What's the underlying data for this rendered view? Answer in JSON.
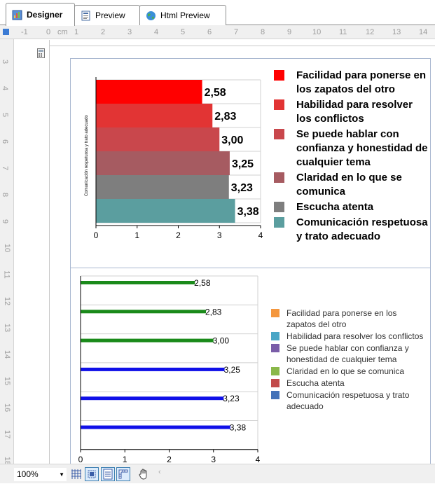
{
  "tabs": [
    {
      "label": "Designer",
      "icon": "designer-icon"
    },
    {
      "label": "Preview",
      "icon": "preview-icon"
    },
    {
      "label": "Html Preview",
      "icon": "globe-icon"
    }
  ],
  "ruler": {
    "unit": "cm",
    "top_labels": [
      "-1",
      "0",
      "cm",
      "1",
      "2",
      "3",
      "4",
      "5",
      "6",
      "7",
      "8",
      "9",
      "10",
      "11",
      "12",
      "13",
      "14"
    ],
    "left_labels": [
      "3",
      "4",
      "5",
      "6",
      "7",
      "8",
      "9",
      "10",
      "11",
      "12",
      "13",
      "14",
      "15",
      "16",
      "17",
      "18"
    ]
  },
  "chart_data": [
    {
      "type": "bar",
      "orientation": "horizontal",
      "categories": [
        "Facilidad para ponerse en los zapatos del otro",
        "Habilidad para resolver los conflictos",
        "Se puede hablar con confianza y honestidad de cualquier tema",
        "Claridad en lo que se comunica",
        "Escucha atenta",
        "Comunicación respetuosa y trato adecuado"
      ],
      "values": [
        2.58,
        2.83,
        3.0,
        3.25,
        3.23,
        3.38
      ],
      "value_labels": [
        "2,58",
        "2,83",
        "3,00",
        "3,25",
        "3,23",
        "3,38"
      ],
      "colors": [
        "#ff0000",
        "#e23434",
        "#c9474c",
        "#a65b61",
        "#7e7e7e",
        "#5b9e9f"
      ],
      "ylabel": "Comunicación respetuosa y trato adecuado",
      "xlim": [
        0,
        4
      ],
      "x_ticks": [
        "0",
        "1",
        "2",
        "3",
        "4"
      ],
      "legend": "right",
      "grid": true
    },
    {
      "type": "bar",
      "orientation": "horizontal",
      "categories": [
        "Facilidad para ponerse en los zapatos del otro",
        "Habilidad para resolver los conflictos",
        "Se puede hablar con confianza y honestidad de cualquier tema",
        "Claridad en lo que se comunica",
        "Escucha atenta",
        "Comunicación respetuosa y trato adecuado"
      ],
      "values": [
        2.58,
        2.83,
        3.0,
        3.25,
        3.23,
        3.38
      ],
      "value_labels": [
        "2,58",
        "2,83",
        "3,00",
        "3,25",
        "3,23",
        "3,38"
      ],
      "bar_colors": [
        "#1a8a1a",
        "#1a8a1a",
        "#1a8a1a",
        "#1010e8",
        "#1010e8",
        "#1010e8"
      ],
      "legend_colors": [
        "#f4973e",
        "#4aa6c6",
        "#7a5da8",
        "#8ab84a",
        "#c24b4b",
        "#4472b8"
      ],
      "xlim": [
        0,
        4
      ],
      "x_ticks": [
        "0",
        "1",
        "2",
        "3",
        "4"
      ],
      "legend": "right",
      "grid": true
    }
  ],
  "bottom": {
    "zoom": "100%",
    "tools": [
      "grid-icon",
      "snap-icon",
      "page-icon",
      "ruler-icon",
      "hand-icon"
    ]
  }
}
